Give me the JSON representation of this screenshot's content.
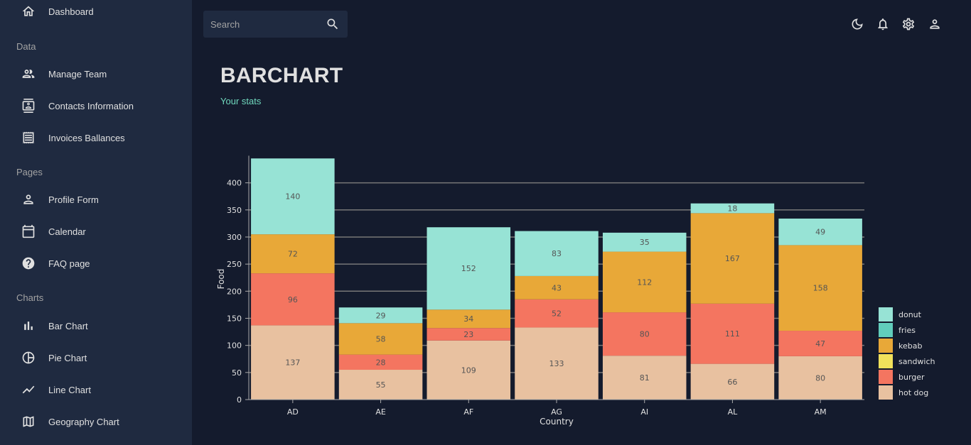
{
  "sidebar": {
    "dashboard": "Dashboard",
    "sections": {
      "data": "Data",
      "pages": "Pages",
      "charts": "Charts"
    },
    "items": {
      "manage_team": "Manage Team",
      "contacts": "Contacts Information",
      "invoices": "Invoices Ballances",
      "profile_form": "Profile Form",
      "calendar": "Calendar",
      "faq": "FAQ page",
      "bar_chart": "Bar Chart",
      "pie_chart": "Pie Chart",
      "line_chart": "Line Chart",
      "geography_chart": "Geography Chart"
    }
  },
  "topbar": {
    "search_placeholder": "Search",
    "icons": [
      "dark-mode-icon",
      "notifications-icon",
      "settings-icon",
      "user-icon"
    ]
  },
  "header": {
    "title": "BARCHART",
    "subtitle": "Your stats"
  },
  "colors": {
    "background": "#141b2d",
    "sidebar": "#1f2a40",
    "accent": "#70d8bd"
  },
  "chart_data": {
    "type": "bar",
    "stacked": true,
    "xlabel": "Country",
    "ylabel": "Food",
    "ylim": [
      0,
      450
    ],
    "yticks": [
      0,
      50,
      100,
      150,
      200,
      250,
      300,
      350,
      400
    ],
    "categories": [
      "AD",
      "AE",
      "AF",
      "AG",
      "AI",
      "AL",
      "AM"
    ],
    "series": [
      {
        "name": "hot dog",
        "color": "#e8c1a0",
        "values": [
          137,
          55,
          109,
          133,
          81,
          66,
          80
        ]
      },
      {
        "name": "burger",
        "color": "#f47560",
        "values": [
          96,
          28,
          23,
          52,
          80,
          111,
          47
        ]
      },
      {
        "name": "sandwich",
        "color": "#f1e15b",
        "values": [
          0,
          0,
          0,
          0,
          0,
          0,
          0
        ]
      },
      {
        "name": "kebab",
        "color": "#e8a838",
        "values": [
          72,
          58,
          34,
          43,
          112,
          167,
          158
        ]
      },
      {
        "name": "fries",
        "color": "#61cdbb",
        "values": [
          0,
          0,
          0,
          0,
          0,
          0,
          0
        ]
      },
      {
        "name": "donut",
        "color": "#97e3d5",
        "values": [
          140,
          29,
          152,
          83,
          35,
          18,
          49
        ]
      }
    ],
    "legend": {
      "placement": "bottom-right",
      "entries": [
        {
          "name": "donut",
          "color": "#97e3d5"
        },
        {
          "name": "fries",
          "color": "#61cdbb"
        },
        {
          "name": "kebab",
          "color": "#e8a838"
        },
        {
          "name": "sandwich",
          "color": "#f1e15b"
        },
        {
          "name": "burger",
          "color": "#f47560"
        },
        {
          "name": "hot dog",
          "color": "#e8c1a0"
        }
      ]
    },
    "grid": true
  }
}
